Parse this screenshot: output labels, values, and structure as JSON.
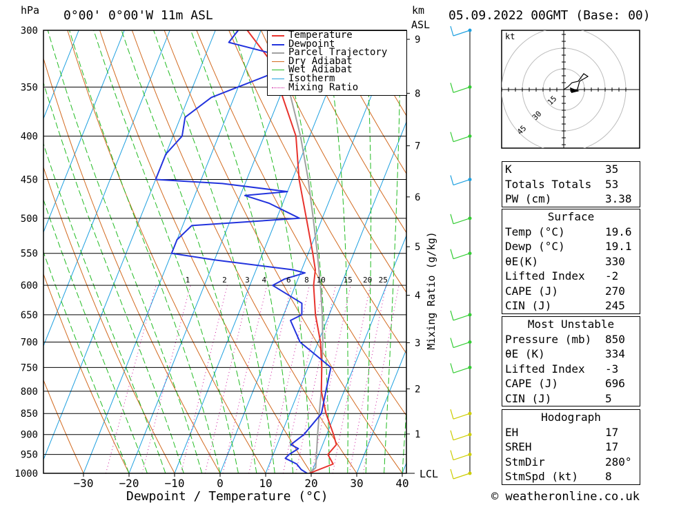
{
  "header": {
    "left_unit": "hPa",
    "location": "0°00' 0°00'W 11m ASL",
    "km_label": "km",
    "asl_label": "ASL",
    "date": "05.09.2022 00GMT (Base: 00)"
  },
  "legend": [
    "Temperature",
    "Dewpoint",
    "Parcel Trajectory",
    "Dry Adiabat",
    "Wet Adiabat",
    "Isotherm",
    "Mixing Ratio"
  ],
  "axes": {
    "xlabel": "Dewpoint / Temperature (°C)",
    "ylabel_right": "Mixing Ratio (g/kg)",
    "lcl_label": "LCL",
    "hodo_unit": "kt"
  },
  "colors": {
    "temperature": "#e8322c",
    "dewpoint": "#2233dd",
    "parcel": "#a0a0a0",
    "dry_adiabat": "#d2691e",
    "wet_adiabat": "#22bb22",
    "isotherm": "#1ea0e0",
    "mixing_ratio": "#cc1199",
    "wind_green": "#33cc33",
    "wind_yellow": "#cccc00"
  },
  "chart_data": {
    "type": "line",
    "title": "",
    "y_pressure_ticks": [
      300,
      350,
      400,
      450,
      500,
      550,
      600,
      650,
      700,
      750,
      800,
      850,
      900,
      950,
      1000
    ],
    "x_temp_ticks": [
      -30,
      -20,
      -10,
      0,
      10,
      20,
      30,
      40
    ],
    "km_ticks": [
      1,
      2,
      3,
      4,
      5,
      6,
      7,
      8,
      9
    ],
    "mixing_ratio_labels": [
      1,
      2,
      3,
      4,
      6,
      8,
      10,
      15,
      20,
      25
    ],
    "xlim": [
      -40,
      40
    ],
    "ylim_hPa": [
      1000,
      300
    ],
    "series": [
      {
        "name": "Temperature",
        "points": [
          [
            1000,
            19.6
          ],
          [
            975,
            24
          ],
          [
            950,
            22
          ],
          [
            925,
            23
          ],
          [
            900,
            21.5
          ],
          [
            850,
            18
          ],
          [
            800,
            15
          ],
          [
            750,
            13
          ],
          [
            700,
            10.5
          ],
          [
            650,
            7
          ],
          [
            600,
            4
          ],
          [
            575,
            3
          ],
          [
            550,
            1
          ],
          [
            500,
            -3.5
          ],
          [
            450,
            -8.5
          ],
          [
            400,
            -13
          ],
          [
            350,
            -21
          ],
          [
            325,
            -25.5
          ],
          [
            300,
            -33
          ]
        ]
      },
      {
        "name": "Dewpoint",
        "points": [
          [
            1000,
            19.1
          ],
          [
            990,
            17.5
          ],
          [
            975,
            16
          ],
          [
            960,
            13
          ],
          [
            950,
            13.5
          ],
          [
            935,
            15
          ],
          [
            925,
            13
          ],
          [
            900,
            15
          ],
          [
            850,
            17
          ],
          [
            800,
            16
          ],
          [
            750,
            15
          ],
          [
            700,
            6
          ],
          [
            660,
            2
          ],
          [
            650,
            4
          ],
          [
            630,
            3
          ],
          [
            600,
            -5
          ],
          [
            590,
            -3
          ],
          [
            580,
            1
          ],
          [
            575,
            -2
          ],
          [
            560,
            -20
          ],
          [
            550,
            -30
          ],
          [
            530,
            -30
          ],
          [
            510,
            -28
          ],
          [
            500,
            -5
          ],
          [
            480,
            -13
          ],
          [
            470,
            -19
          ],
          [
            465,
            -10
          ],
          [
            455,
            -25
          ],
          [
            450,
            -40
          ],
          [
            420,
            -40
          ],
          [
            400,
            -38
          ],
          [
            380,
            -39
          ],
          [
            360,
            -35
          ],
          [
            340,
            -25
          ],
          [
            330,
            -20
          ],
          [
            320,
            -25
          ],
          [
            310,
            -36
          ],
          [
            300,
            -35
          ]
        ]
      },
      {
        "name": "Parcel Trajectory",
        "points": [
          [
            1000,
            19.6
          ],
          [
            985,
            20.5
          ],
          [
            950,
            19.5
          ],
          [
            900,
            18
          ],
          [
            850,
            16.5
          ],
          [
            800,
            15
          ],
          [
            750,
            13
          ],
          [
            700,
            11
          ],
          [
            650,
            8.5
          ],
          [
            600,
            5.5
          ],
          [
            550,
            2
          ],
          [
            500,
            -2
          ],
          [
            450,
            -6.5
          ],
          [
            400,
            -12
          ],
          [
            350,
            -19
          ],
          [
            300,
            -28
          ]
        ]
      }
    ]
  },
  "wind_profile": [
    {
      "p": 1000,
      "color": "yellow"
    },
    {
      "p": 950,
      "color": "yellow"
    },
    {
      "p": 900,
      "color": "yellow"
    },
    {
      "p": 850,
      "color": "yellow"
    },
    {
      "p": 750,
      "color": "green"
    },
    {
      "p": 700,
      "color": "green"
    },
    {
      "p": 650,
      "color": "green"
    },
    {
      "p": 550,
      "color": "green"
    },
    {
      "p": 500,
      "color": "green"
    },
    {
      "p": 450,
      "color": "cyan"
    },
    {
      "p": 400,
      "color": "green"
    },
    {
      "p": 350,
      "color": "green"
    },
    {
      "p": 300,
      "color": "cyan"
    }
  ],
  "hodograph_rings": [
    "15",
    "30",
    "45"
  ],
  "indices": [
    {
      "label": "K",
      "value": "35"
    },
    {
      "label": "Totals Totals",
      "value": "53"
    },
    {
      "label": "PW (cm)",
      "value": "3.38"
    }
  ],
  "surface": {
    "title": "Surface",
    "rows": [
      {
        "label": "Temp (°C)",
        "value": "19.6"
      },
      {
        "label": "Dewp (°C)",
        "value": "19.1"
      },
      {
        "label": "θE(K)",
        "value": "330"
      },
      {
        "label": "Lifted Index",
        "value": "-2"
      },
      {
        "label": "CAPE (J)",
        "value": "270"
      },
      {
        "label": "CIN (J)",
        "value": "245"
      }
    ]
  },
  "most_unstable": {
    "title": "Most Unstable",
    "rows": [
      {
        "label": "Pressure (mb)",
        "value": "850"
      },
      {
        "label": "θE (K)",
        "value": "334"
      },
      {
        "label": "Lifted Index",
        "value": "-3"
      },
      {
        "label": "CAPE (J)",
        "value": "696"
      },
      {
        "label": "CIN (J)",
        "value": "5"
      }
    ]
  },
  "hodograph": {
    "title": "Hodograph",
    "rows": [
      {
        "label": "EH",
        "value": "17"
      },
      {
        "label": "SREH",
        "value": "17"
      },
      {
        "label": "StmDir",
        "value": "280°"
      },
      {
        "label": "StmSpd (kt)",
        "value": "8"
      }
    ]
  },
  "footer": "© weatheronline.co.uk"
}
